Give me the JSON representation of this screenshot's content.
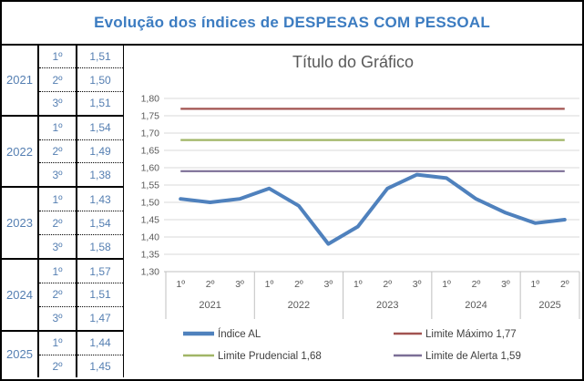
{
  "title": "Evolução dos índices de DESPESAS COM PESSOAL",
  "table": {
    "groups": [
      {
        "year": "2021",
        "rows": [
          {
            "quarter": "1º",
            "value": "1,51"
          },
          {
            "quarter": "2º",
            "value": "1,50"
          },
          {
            "quarter": "3º",
            "value": "1,51"
          }
        ]
      },
      {
        "year": "2022",
        "rows": [
          {
            "quarter": "1º",
            "value": "1,54"
          },
          {
            "quarter": "2º",
            "value": "1,49"
          },
          {
            "quarter": "3º",
            "value": "1,38"
          }
        ]
      },
      {
        "year": "2023",
        "rows": [
          {
            "quarter": "1º",
            "value": "1,43"
          },
          {
            "quarter": "2º",
            "value": "1,54"
          },
          {
            "quarter": "3º",
            "value": "1,58"
          }
        ]
      },
      {
        "year": "2024",
        "rows": [
          {
            "quarter": "1º",
            "value": "1,57"
          },
          {
            "quarter": "2º",
            "value": "1,51"
          },
          {
            "quarter": "3º",
            "value": "1,47"
          }
        ]
      },
      {
        "year": "2025",
        "rows": [
          {
            "quarter": "1º",
            "value": "1,44"
          },
          {
            "quarter": "2º",
            "value": "1,45"
          }
        ]
      }
    ]
  },
  "chart_data": {
    "type": "line",
    "title": "Título do Gráfico",
    "x_groups": [
      {
        "year": "2021",
        "quarters": [
          "1º",
          "2º",
          "3º"
        ]
      },
      {
        "year": "2022",
        "quarters": [
          "1º",
          "2º",
          "3º"
        ]
      },
      {
        "year": "2023",
        "quarters": [
          "1º",
          "2º",
          "3º"
        ]
      },
      {
        "year": "2024",
        "quarters": [
          "1º",
          "2º",
          "3º"
        ]
      },
      {
        "year": "2025",
        "quarters": [
          "1º",
          "2º"
        ]
      }
    ],
    "series": [
      {
        "name": "Índice AL",
        "slug": "indice-al",
        "color": "#4F81BD",
        "width": 4,
        "values": [
          1.51,
          1.5,
          1.51,
          1.54,
          1.49,
          1.38,
          1.43,
          1.54,
          1.58,
          1.57,
          1.51,
          1.47,
          1.44,
          1.45
        ]
      },
      {
        "name": "Limite Máximo 1,77",
        "slug": "limite-maximo",
        "color": "#A25350",
        "width": 2.2,
        "level": 1.77
      },
      {
        "name": "Limite Prudencial 1,68",
        "slug": "limite-prudencial",
        "color": "#A0B566",
        "width": 2.2,
        "level": 1.68
      },
      {
        "name": "Limite de Alerta 1,59",
        "slug": "limite-de-alerta",
        "color": "#7B6E96",
        "width": 2.2,
        "level": 1.59
      }
    ],
    "ylim": [
      1.3,
      1.8
    ],
    "ytick_step": 0.05,
    "ytick_labels": [
      "1,80",
      "1,75",
      "1,70",
      "1,65",
      "1,60",
      "1,55",
      "1,50",
      "1,45",
      "1,40",
      "1,35",
      "1,30"
    ],
    "grid": true,
    "legend_position": "bottom",
    "colors": {
      "grid": "#D9D9D9",
      "axis": "#C0C0C0",
      "axis_text": "#595959",
      "legend_text": "#3F3F3F",
      "chart_title": "#595959",
      "page_title": "#3C7CC1",
      "table_text": "#557FB2"
    }
  }
}
